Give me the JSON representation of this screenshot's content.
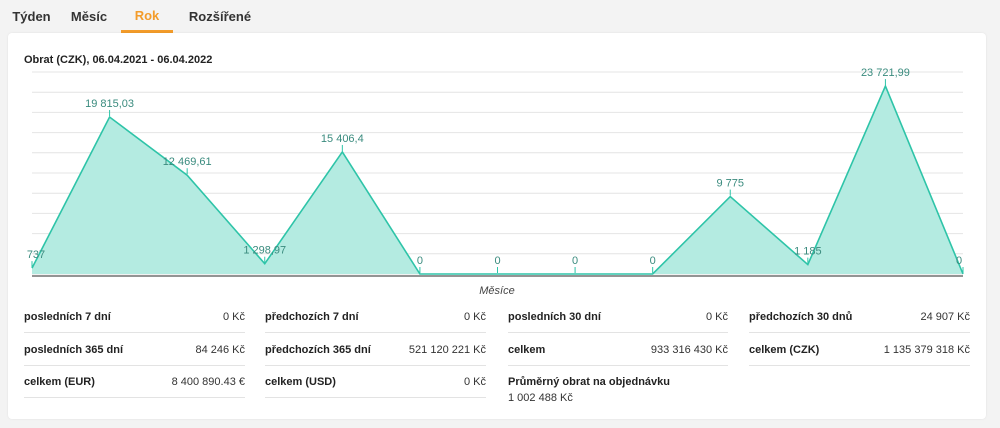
{
  "tabs": [
    {
      "label": "Týden",
      "active": false
    },
    {
      "label": "Měsíc",
      "active": false
    },
    {
      "label": "Rok",
      "active": true
    },
    {
      "label": "Rozšířené",
      "active": false
    }
  ],
  "colors": {
    "accent": "#f39c2a",
    "series_stroke": "#2ec4a8",
    "series_fill": "#b4ebe1",
    "label": "#3a8b7e"
  },
  "chart_data": {
    "type": "area",
    "title": "Obrat (CZK), 06.04.2021 - 06.04.2022",
    "xlabel": "Měsíce",
    "ylabel": "",
    "ylim": [
      0,
      25500
    ],
    "grid": true,
    "x": [
      0,
      1,
      2,
      3,
      4,
      5,
      6,
      7,
      8,
      9,
      10,
      11,
      12
    ],
    "series": [
      {
        "values": [
          737,
          19815.03,
          12469.61,
          1298.97,
          15406.4,
          0,
          0,
          0,
          0,
          9775,
          1185,
          23721.99,
          0
        ]
      }
    ],
    "data_labels": [
      "737",
      "19 815,03",
      "12 469,61",
      "1 298,97",
      "15 406,4",
      "0",
      "0",
      "0",
      "0",
      "9 775",
      "1 185",
      "23 721,99",
      "0"
    ]
  },
  "stats": {
    "row1": [
      {
        "label": "posledních 7 dní",
        "value": "0 Kč"
      },
      {
        "label": "předchozích 7 dní",
        "value": "0 Kč"
      },
      {
        "label": "posledních 30 dní",
        "value": "0 Kč"
      },
      {
        "label": "předchozích 30 dnů",
        "value": "24 907 Kč"
      }
    ],
    "row2": [
      {
        "label": "posledních 365 dní",
        "value": "84 246 Kč"
      },
      {
        "label": "předchozích 365 dní",
        "value": "521 120 221 Kč"
      },
      {
        "label": "celkem",
        "value": "933 316 430 Kč"
      },
      {
        "label": "celkem (CZK)",
        "value": "1 135 379 318 Kč"
      }
    ],
    "row3": [
      {
        "label": "celkem (EUR)",
        "value": "8 400 890.43 €"
      },
      {
        "label": "celkem (USD)",
        "value": "0 Kč"
      },
      {
        "label": "Průměrný obrat na objednávku",
        "value": "1 002 488 Kč"
      }
    ]
  }
}
